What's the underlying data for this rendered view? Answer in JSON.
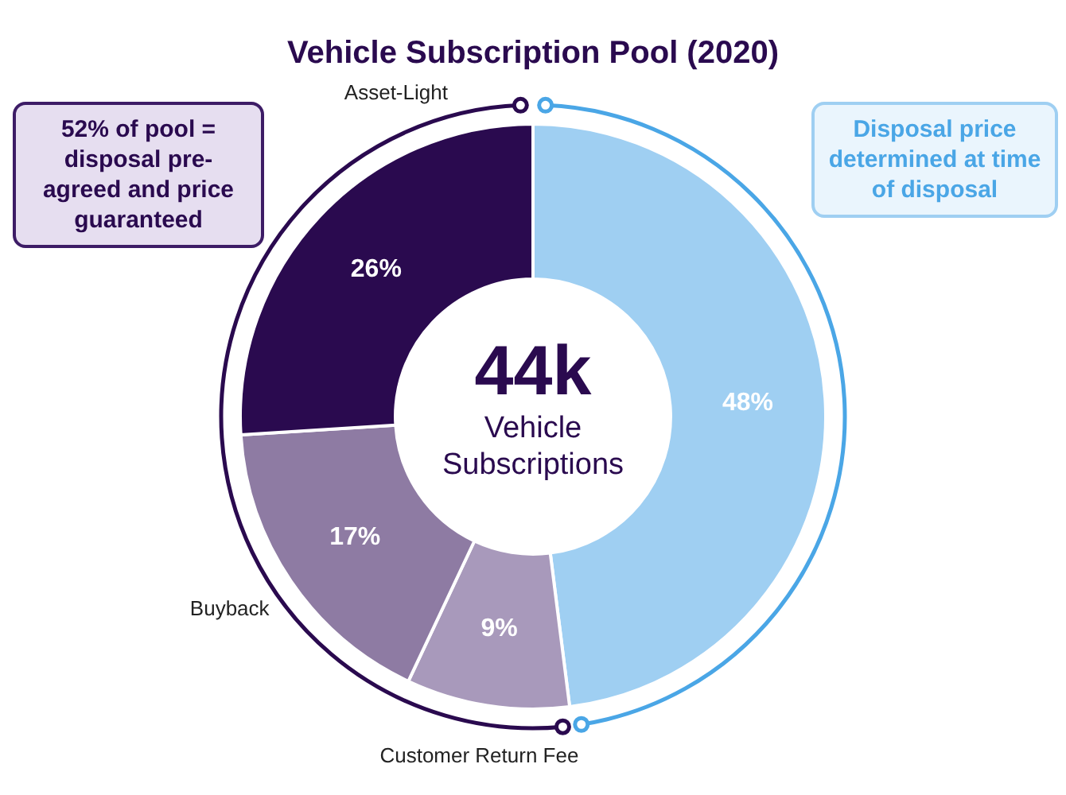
{
  "chart_data": {
    "type": "donut",
    "title": "Vehicle Subscription Pool (2020)",
    "categories": [
      null,
      "Customer Return Fee",
      "Buyback",
      "Asset-Light"
    ],
    "values": [
      48,
      9,
      17,
      26
    ],
    "colors": [
      "#9fcff2",
      "#a899bb",
      "#8e7ba3",
      "#2a0a4f"
    ],
    "value_labels": [
      "48%",
      "9%",
      "17%",
      "26%"
    ],
    "legend": false,
    "annotations": [
      "52% of pool = disposal pre-agreed and price guaranteed",
      "Disposal price determined at time of disposal",
      "44k",
      "Vehicle Subscriptions"
    ]
  }
}
